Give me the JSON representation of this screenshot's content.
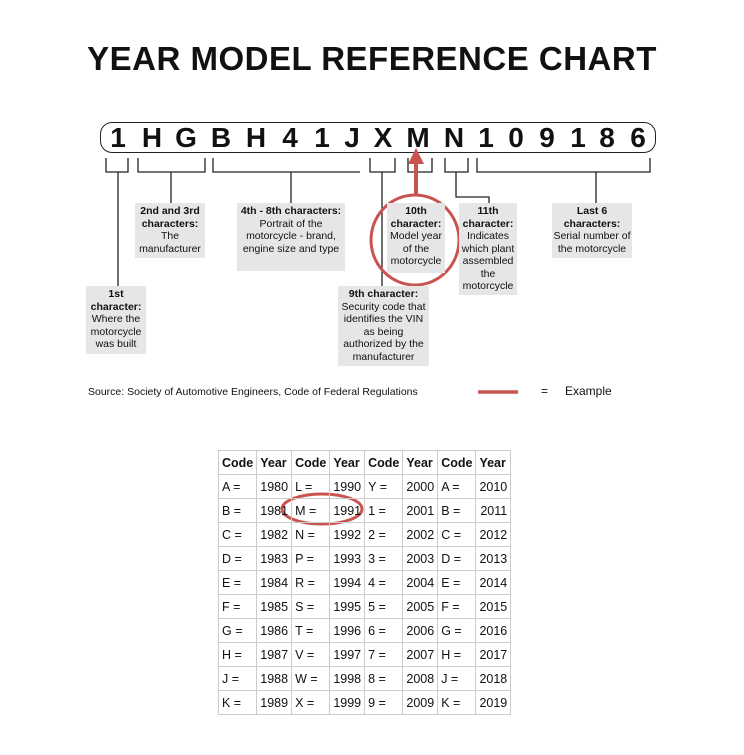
{
  "title": "YEAR MODEL REFERENCE CHART",
  "vin": [
    "1",
    "H",
    "G",
    "B",
    "H",
    "4",
    "1",
    "J",
    "X",
    "M",
    "N",
    "1",
    "0",
    "9",
    "1",
    "8",
    "6"
  ],
  "labels": {
    "c1": {
      "head": "1st character:",
      "body": "Where the motorcycle was built"
    },
    "c2_3": {
      "head": "2nd and 3rd characters:",
      "body": "The manufacturer"
    },
    "c4_8": {
      "head": "4th - 8th characters:",
      "body": "Portrait of the motorcycle - brand, engine size and type"
    },
    "c9": {
      "head": "9th character:",
      "body": "Security code that identifies the VIN as being authorized by the manufacturer"
    },
    "c10": {
      "head": "10th character:",
      "body": "Model year of the motorcycle"
    },
    "c11": {
      "head": "11th character:",
      "body": "Indicates which plant assembled the motorcycle"
    },
    "last6": {
      "head": "Last 6 characters:",
      "body": "Serial number of the motorcycle"
    }
  },
  "source": "Source:  Society of Automotive Engineers, Code of Federal Regulations",
  "legend": {
    "equals": "=",
    "label": "Example"
  },
  "colors": {
    "highlight": "#c9544f"
  },
  "table": {
    "headers": [
      "Code",
      "Year",
      "Code",
      "Year",
      "Code",
      "Year",
      "Code",
      "Year"
    ],
    "rows": [
      [
        "A =",
        "1980",
        "L =",
        "1990",
        "Y =",
        "2000",
        "A =",
        "2010"
      ],
      [
        "B =",
        "1981",
        "M =",
        "1991",
        "1 =",
        "2001",
        "B =",
        "2011"
      ],
      [
        "C =",
        "1982",
        "N =",
        "1992",
        "2 =",
        "2002",
        "C =",
        "2012"
      ],
      [
        "D =",
        "1983",
        "P =",
        "1993",
        "3 =",
        "2003",
        "D =",
        "2013"
      ],
      [
        "E =",
        "1984",
        "R =",
        "1994",
        "4 =",
        "2004",
        "E =",
        "2014"
      ],
      [
        "F =",
        "1985",
        "S =",
        "1995",
        "5 =",
        "2005",
        "F =",
        "2015"
      ],
      [
        "G =",
        "1986",
        "T =",
        "1996",
        "6 =",
        "2006",
        "G =",
        "2016"
      ],
      [
        "H =",
        "1987",
        "V =",
        "1997",
        "7 =",
        "2007",
        "H =",
        "2017"
      ],
      [
        "J =",
        "1988",
        "W =",
        "1998",
        "8 =",
        "2008",
        "J =",
        "2018"
      ],
      [
        "K =",
        "1989",
        "X =",
        "1999",
        "9 =",
        "2009",
        "K =",
        "2019"
      ]
    ],
    "highlighted": {
      "code": "M =",
      "year": "1991"
    }
  }
}
